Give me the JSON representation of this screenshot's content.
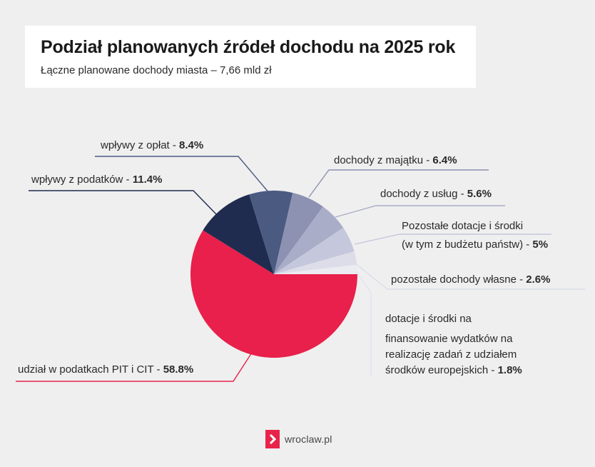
{
  "header": {
    "title": "Podział planowanych źródeł dochodu na 2025 rok",
    "subtitle": "Łączne planowane dochody miasta – 7,66 mld zł"
  },
  "chart_data": {
    "type": "pie",
    "title": "Podział planowanych źródeł dochodu na 2025 rok",
    "subtitle": "Łączne planowane dochody miasta – 7,66 mld zł",
    "slices": [
      {
        "label": "udział w podatkach PIT i CIT",
        "value": 58.8,
        "value_label": "58.8%",
        "color": "#e8204b"
      },
      {
        "label": "wpływy z podatków",
        "value": 11.4,
        "value_label": "11.4%",
        "color": "#1f2c4f"
      },
      {
        "label": "wpływy z opłat",
        "value": 8.4,
        "value_label": "8.4%",
        "color": "#4b5a81"
      },
      {
        "label": "dochody z majątku",
        "value": 6.4,
        "value_label": "6.4%",
        "color": "#8d92b3"
      },
      {
        "label": "dochody z usług",
        "value": 5.6,
        "value_label": "5.6%",
        "color": "#aaadc8"
      },
      {
        "label": "Pozostałe dotacje i środki (w tym z budżetu państw)",
        "value": 5,
        "value_label": "5%",
        "color": "#c5c7dc"
      },
      {
        "label": "pozostałe dochody własne",
        "value": 2.6,
        "value_label": "2.6%",
        "color": "#dcdde9"
      },
      {
        "label": "dotacje i środki na finansowanie wydatków na realizację zadań z udziałem środków europejskich",
        "value": 1.8,
        "value_label": "1.8%",
        "color": "#ebebf2"
      }
    ]
  },
  "labels": {
    "pit_cit": {
      "text": "udział w podatkach PIT i CIT - ",
      "value": "58.8%"
    },
    "podatki": {
      "text": "wpływy z podatków - ",
      "value": "11.4%"
    },
    "oplaty": {
      "text": "wpływy z opłat - ",
      "value": "8.4%"
    },
    "majatek": {
      "text": "dochody z majątku - ",
      "value": "6.4%"
    },
    "uslugi": {
      "text": "dochody z usług - ",
      "value": "5.6%"
    },
    "dotacje_line1": "Pozostałe dotacje i środki",
    "dotacje_line2": {
      "text": "(w tym z budżetu państw) - ",
      "value": "5%"
    },
    "wlasne": {
      "text": "pozostałe dochody własne - ",
      "value": "2.6%"
    },
    "eu_line1": "dotacje i środki na",
    "eu_line2": "finansowanie wydatków na",
    "eu_line3": "realizację zadań z udziałem",
    "eu_line4": {
      "text": "środków europejskich - ",
      "value": "1.8%"
    }
  },
  "footer": {
    "logo_text": "wroclaw.pl",
    "logo_icon": "chevron-right-icon",
    "logo_color": "#e8234a"
  }
}
